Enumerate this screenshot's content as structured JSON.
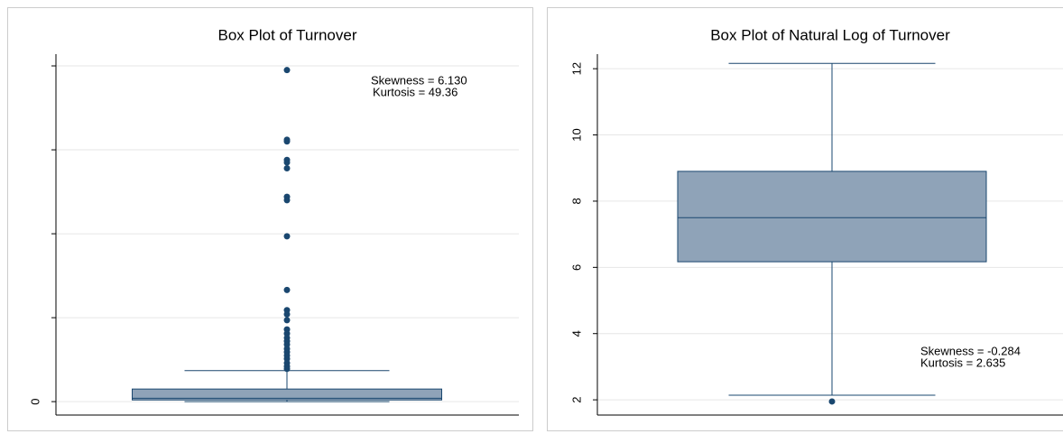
{
  "chart_data": [
    {
      "type": "box",
      "title": "Box Plot of Turnover",
      "ylim": [
        -0.16,
        4.14
      ],
      "yticks": [
        0,
        {
          "value": 1,
          "label": null
        },
        {
          "value": 2,
          "label": null
        },
        {
          "value": 3,
          "label": null
        },
        {
          "value": 4,
          "label": null
        }
      ],
      "grid": true,
      "color": "#8fa3b8",
      "line_color": "#1a476f",
      "box": {
        "whisker_low": 0.0,
        "q1": 0.02,
        "median": 0.04,
        "q3": 0.15,
        "whisker_high": 0.37
      },
      "outliers": [
        3.95,
        3.12,
        3.1,
        2.88,
        2.85,
        2.78,
        2.44,
        2.4,
        1.97,
        1.33,
        1.09,
        1.04,
        0.97,
        0.86,
        0.81,
        0.76,
        0.72,
        0.68,
        0.63,
        0.59,
        0.55,
        0.51,
        0.46,
        0.42,
        0.39
      ],
      "annotations": [
        "Skewness = 6.130",
        "Kurtosis = 49.36"
      ]
    },
    {
      "type": "box",
      "title": "Box Plot of Natural Log of Turnover",
      "ylim": [
        1.54,
        12.44
      ],
      "yticks": [
        2,
        4,
        6,
        8,
        10,
        12
      ],
      "grid": true,
      "color": "#8fa3b8",
      "line_color": "#1a476f",
      "box": {
        "whisker_low": 2.14,
        "q1": 6.17,
        "median": 7.5,
        "q3": 8.9,
        "whisker_high": 12.16
      },
      "outliers": [
        1.95
      ],
      "annotations": [
        "Skewness = -0.284",
        "Kurtosis = 2.635"
      ]
    }
  ]
}
